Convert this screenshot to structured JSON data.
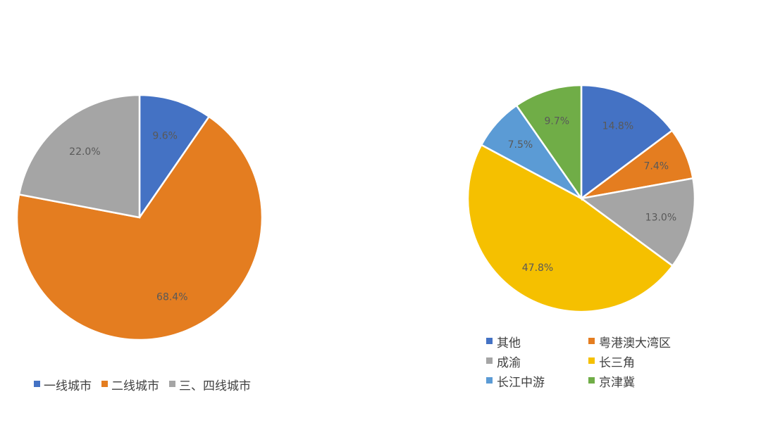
{
  "chart_data": [
    {
      "type": "pie",
      "categories": [
        "一线城市",
        "二线城市",
        "三、四线城市"
      ],
      "values": [
        9.6,
        68.4,
        22.0
      ],
      "labels": [
        "9.6%",
        "68.4%",
        "22.0%"
      ],
      "colors": [
        "#4472C4",
        "#E47D20",
        "#A5A5A5"
      ],
      "start_angle_deg": 0,
      "direction": "clockwise",
      "legend": {
        "position": "bottom",
        "layout": "row"
      }
    },
    {
      "type": "pie",
      "categories": [
        "其他",
        "粤港澳大湾区",
        "成渝",
        "长三角",
        "长江中游",
        "京津冀"
      ],
      "values": [
        14.8,
        7.4,
        13.0,
        47.8,
        7.5,
        9.7
      ],
      "labels": [
        "14.8%",
        "7.4%",
        "13.0%",
        "47.8%",
        "7.5%",
        "9.7%"
      ],
      "colors": [
        "#4472C4",
        "#E47D20",
        "#A5A5A5",
        "#F5C000",
        "#5B9BD5",
        "#70AD47"
      ],
      "start_angle_deg": 0,
      "direction": "clockwise",
      "legend": {
        "position": "bottom",
        "layout": "two-column"
      }
    }
  ]
}
